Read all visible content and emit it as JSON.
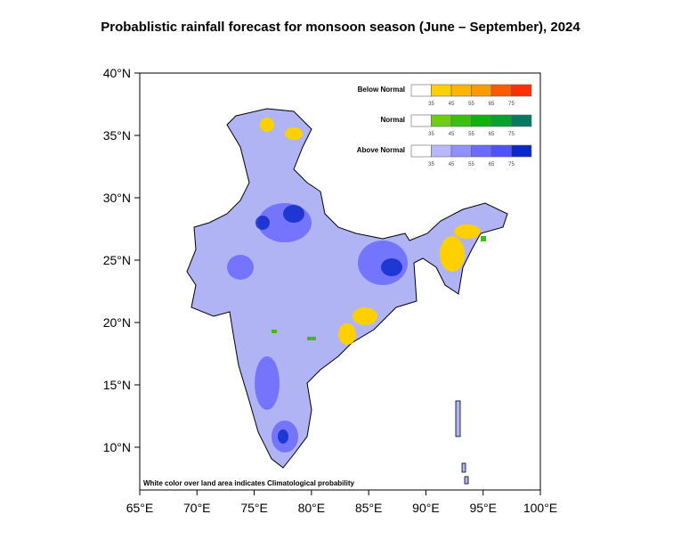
{
  "title": "Probablistic rainfall forecast for monsoon season (June – September), 2024",
  "footnote": "White color over land area indicates Climatological probability",
  "x_ticks": [
    "65°E",
    "70°E",
    "75°E",
    "80°E",
    "85°E",
    "90°E",
    "95°E",
    "100°E"
  ],
  "y_ticks": [
    "40°N",
    "35°N",
    "30°N",
    "25°N",
    "20°N",
    "15°N",
    "10°N"
  ],
  "legend": {
    "thresholds": [
      "35",
      "45",
      "55",
      "65",
      "75"
    ],
    "categories": [
      {
        "label": "Below Normal",
        "colors": [
          "#ffffff",
          "#ffd000",
          "#ffb400",
          "#ff9a00",
          "#ff5a00",
          "#ff3000"
        ]
      },
      {
        "label": "Normal",
        "colors": [
          "#ffffff",
          "#6cd010",
          "#3cc010",
          "#10b010",
          "#08a030",
          "#087860"
        ]
      },
      {
        "label": "Above Normal",
        "colors": [
          "#ffffff",
          "#b8b8ff",
          "#9090ff",
          "#6a6aff",
          "#5050ff",
          "#0a28c8"
        ]
      }
    ]
  }
}
